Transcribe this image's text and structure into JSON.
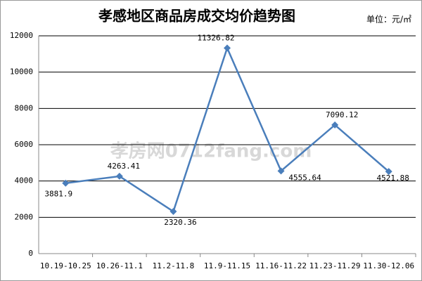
{
  "chart_data": {
    "type": "line",
    "title": "孝感地区商品房成交均价趋势图",
    "unit": "单位：元/㎡",
    "watermark": "孝房网0712fang.com",
    "categories": [
      "10.19-10.25",
      "10.26-11.1",
      "11.2-11.8",
      "11.9-11.15",
      "11.16-11.22",
      "11.23-11.29",
      "11.30-12.06"
    ],
    "series": [
      {
        "name": "成交均价",
        "color": "#4a7ebb",
        "values": [
          3881.9,
          4263.41,
          2320.36,
          11326.82,
          4555.64,
          7090.12,
          4521.88
        ]
      }
    ],
    "ylim": [
      0,
      12000
    ],
    "yticks": [
      0,
      2000,
      4000,
      6000,
      8000,
      10000,
      12000
    ],
    "grid": true
  }
}
